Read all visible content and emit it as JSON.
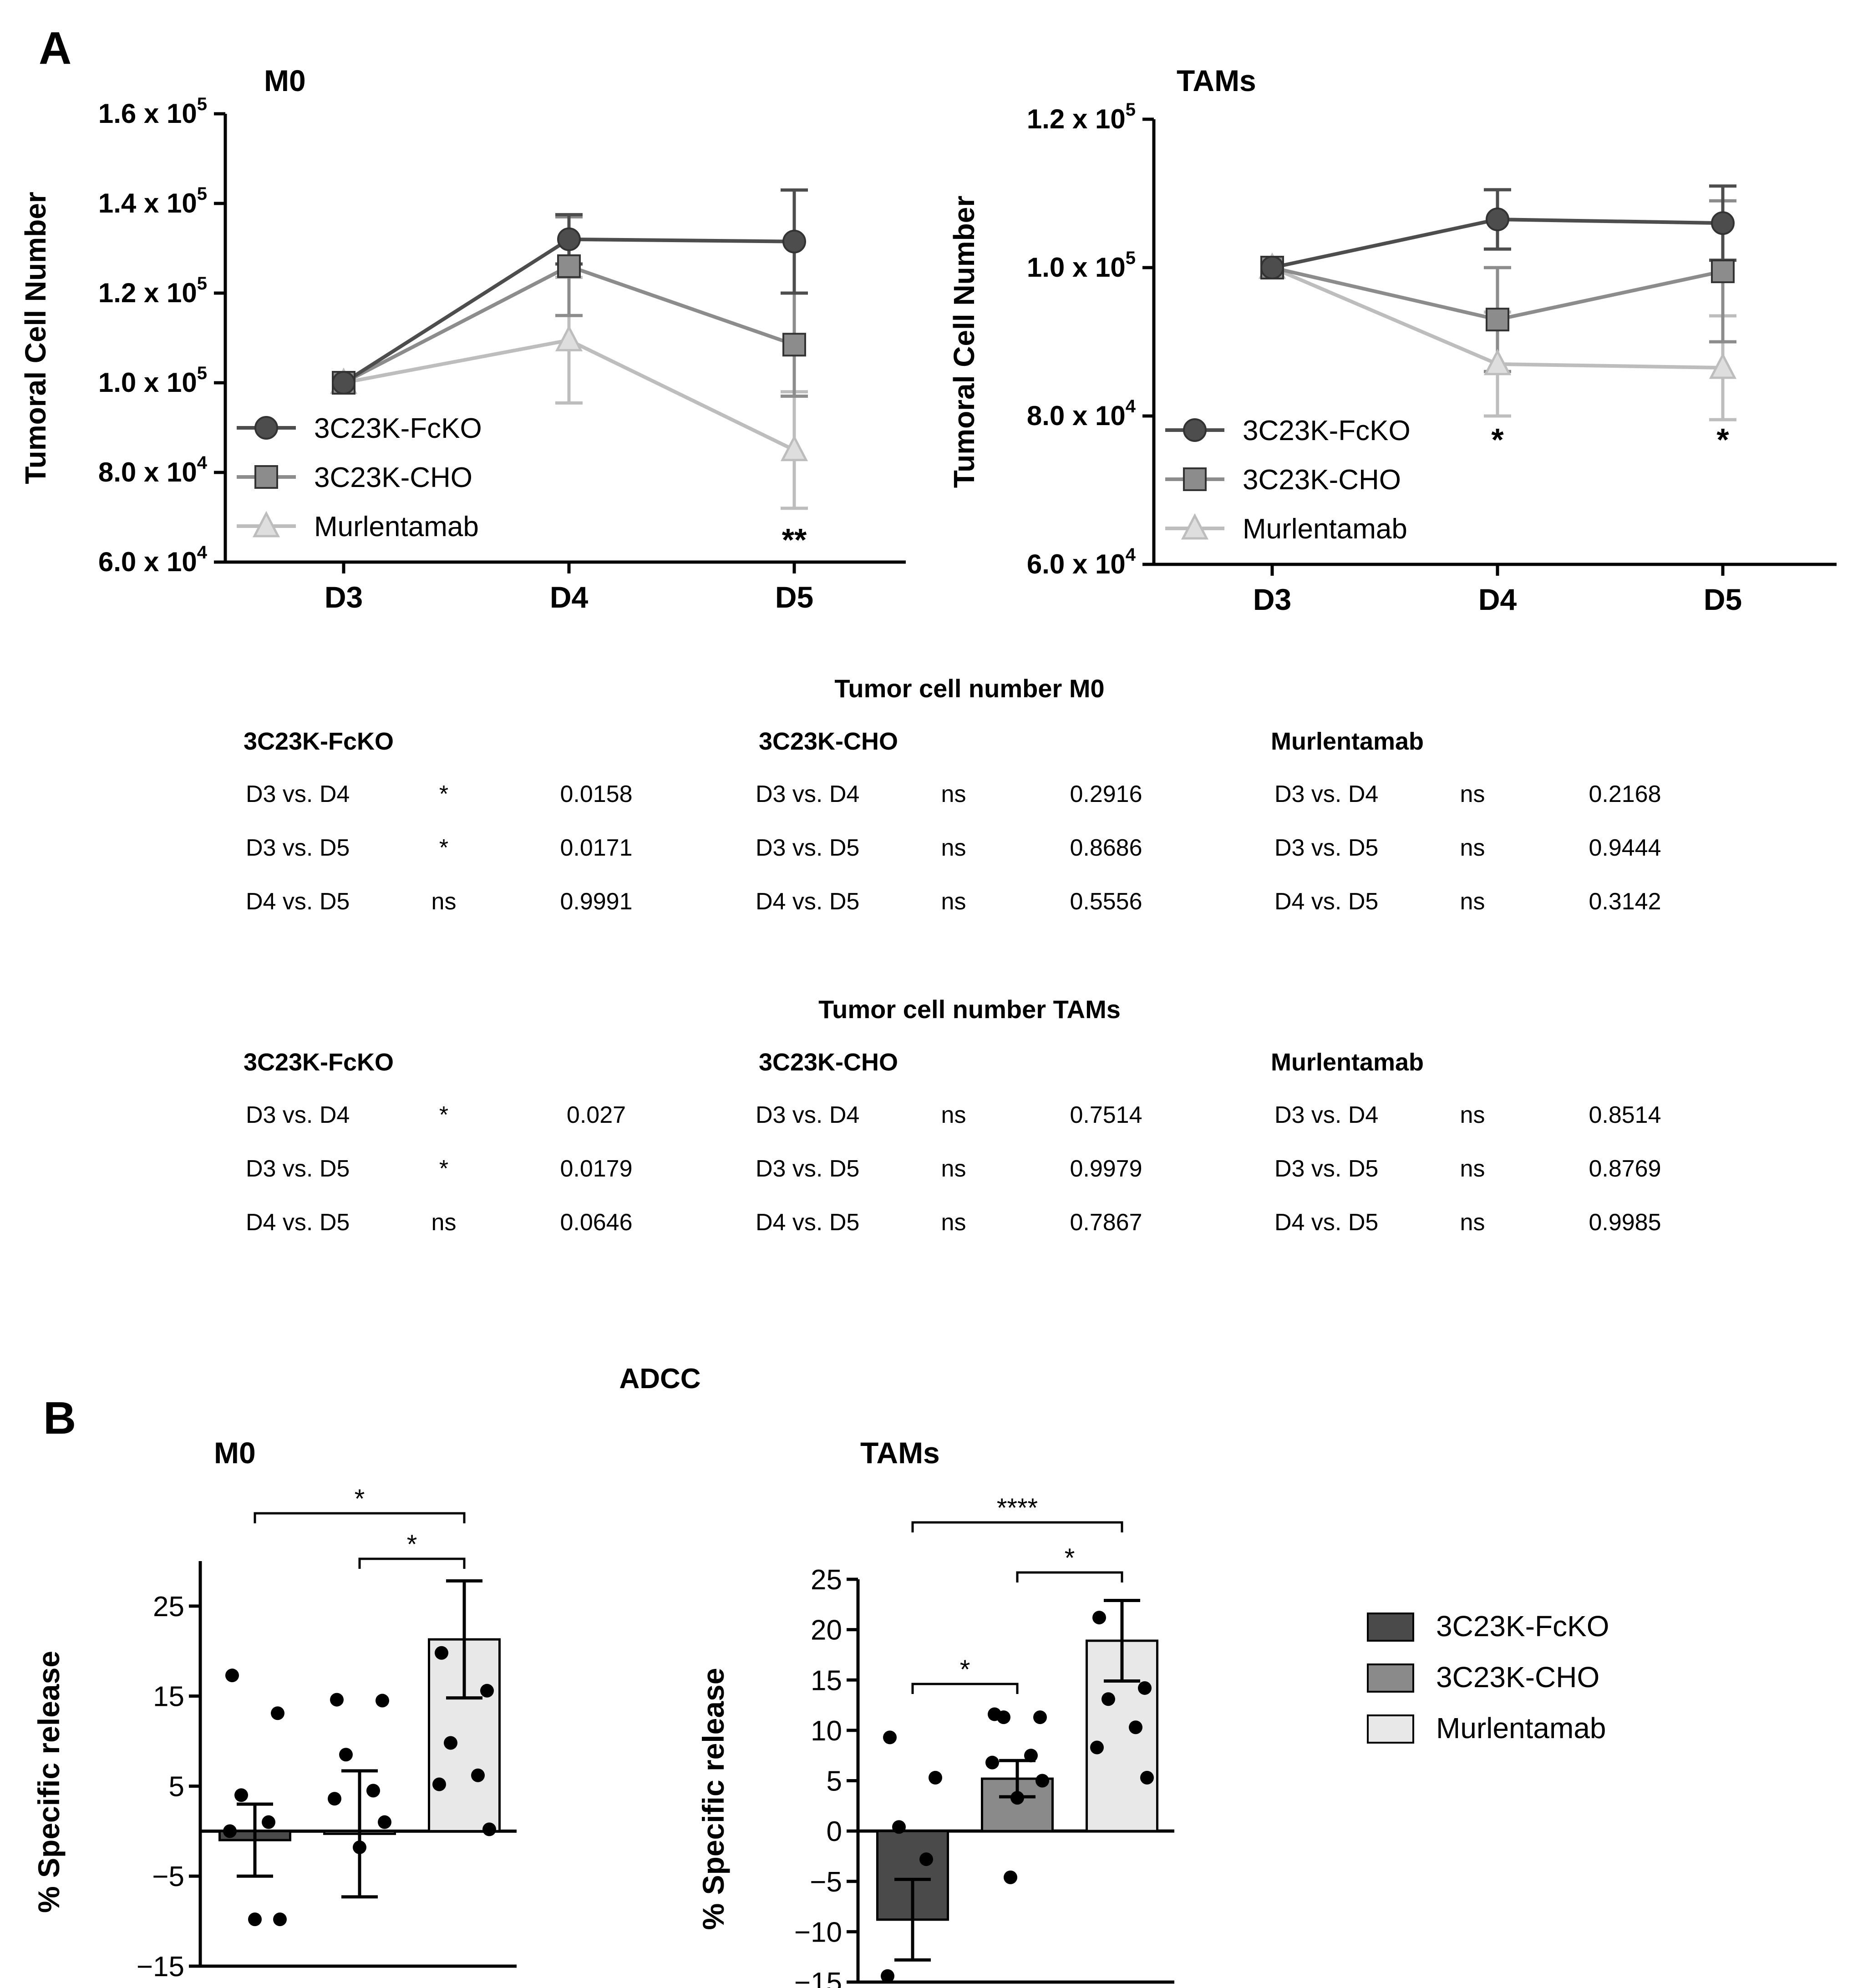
{
  "panels": {
    "a": "A",
    "b": "B"
  },
  "line_legend": [
    "3C23K-FcKO",
    "3C23K-CHO",
    "Murlentamab"
  ],
  "colors": {
    "fcko": "#4d4d4d",
    "cho": "#8c8c8c",
    "murl": "#bdbdbd",
    "bar_fcko": "#4a4a4a",
    "bar_cho": "#8a8a8a",
    "bar_murl": "#e8e8e8"
  },
  "chart_data": [
    {
      "type": "line",
      "title": "M0",
      "ylabel": "Tumoral Cell Number",
      "x": [
        "D3",
        "D4",
        "D5"
      ],
      "ylim": [
        60000,
        160000
      ],
      "yticks": [
        {
          "v": 160000,
          "m": "1.6",
          "e": "5"
        },
        {
          "v": 140000,
          "m": "1.4",
          "e": "5"
        },
        {
          "v": 120000,
          "m": "1.2",
          "e": "5"
        },
        {
          "v": 100000,
          "m": "1.0",
          "e": "5"
        },
        {
          "v": 80000,
          "m": "8.0",
          "e": "4"
        },
        {
          "v": 60000,
          "m": "6.0",
          "e": "4"
        }
      ],
      "series": [
        {
          "name": "3C23K-FcKO",
          "values": [
            100000,
            132000,
            131500
          ],
          "err": [
            0,
            5500,
            11500
          ]
        },
        {
          "name": "3C23K-CHO",
          "values": [
            100000,
            126000,
            108500
          ],
          "err": [
            0,
            11000,
            11500
          ]
        },
        {
          "name": "Murlentamab",
          "values": [
            100000,
            109500,
            85000
          ],
          "err": [
            0,
            14000,
            13000
          ]
        }
      ],
      "annotations": [
        {
          "x": "D5",
          "text": "**"
        }
      ]
    },
    {
      "type": "line",
      "title": "TAMs",
      "ylabel": "Tumoral Cell Number",
      "x": [
        "D3",
        "D4",
        "D5"
      ],
      "ylim": [
        60000,
        120000
      ],
      "yticks": [
        {
          "v": 120000,
          "m": "1.2",
          "e": "5"
        },
        {
          "v": 100000,
          "m": "1.0",
          "e": "5"
        },
        {
          "v": 80000,
          "m": "8.0",
          "e": "4"
        },
        {
          "v": 60000,
          "m": "6.0",
          "e": "4"
        }
      ],
      "series": [
        {
          "name": "3C23K-FcKO",
          "values": [
            100000,
            106500,
            106000
          ],
          "err": [
            0,
            4000,
            5000
          ]
        },
        {
          "name": "3C23K-CHO",
          "values": [
            100000,
            93000,
            99500
          ],
          "err": [
            0,
            7000,
            9500
          ]
        },
        {
          "name": "Murlentamab",
          "values": [
            100000,
            87000,
            86500
          ],
          "err": [
            0,
            7000,
            7000
          ]
        }
      ],
      "annotations": [
        {
          "x": "D4",
          "text": "*"
        },
        {
          "x": "D5",
          "text": "*"
        }
      ]
    },
    {
      "type": "bar",
      "title": "M0",
      "ylabel": "% Specific release",
      "categories": [
        "3C23K-FcKO",
        "3C23K-CHO",
        "Murlentamab"
      ],
      "ylim": [
        -15,
        30
      ],
      "yticks": [
        25,
        15,
        5,
        -5,
        -15
      ],
      "values": [
        -1,
        -0.3,
        21.3
      ],
      "err": [
        4,
        7,
        6.5
      ],
      "points": [
        [
          17.3,
          13.1,
          4,
          1,
          0,
          -9.8,
          -9.8
        ],
        [
          14.6,
          14.5,
          8.5,
          4.5,
          3.6,
          1,
          -1.8
        ],
        [
          19.8,
          15.6,
          9.8,
          6.2,
          5.2,
          0.2
        ]
      ],
      "sig": [
        {
          "from": 0,
          "to": 2,
          "text": "*"
        },
        {
          "from": 1,
          "to": 2,
          "text": "*"
        }
      ]
    },
    {
      "type": "bar",
      "title": "TAMs",
      "ylabel": "% Specific release",
      "categories": [
        "3C23K-FcKO",
        "3C23K-CHO",
        "Murlentamab"
      ],
      "ylim": [
        -15,
        25
      ],
      "yticks": [
        25,
        20,
        15,
        10,
        5,
        0,
        -5,
        -10,
        -15
      ],
      "values": [
        -8.8,
        5.2,
        18.9
      ],
      "err": [
        4,
        1.8,
        4
      ],
      "points": [
        [
          9.3,
          5.3,
          0.4,
          -2.8,
          -14.4
        ],
        [
          11.6,
          11.3,
          11.3,
          7.5,
          6.8,
          5,
          3.3,
          -4.6
        ],
        [
          21.2,
          14.2,
          13.1,
          10.3,
          8.3,
          5.3
        ]
      ],
      "sig": [
        {
          "from": 0,
          "to": 2,
          "text": "****"
        },
        {
          "from": 1,
          "to": 2,
          "text": "*"
        },
        {
          "from": 0,
          "to": 1,
          "text": "*"
        }
      ]
    }
  ],
  "bar_section_title": "ADCC",
  "bar_legend": [
    "3C23K-FcKO",
    "3C23K-CHO",
    "Murlentamab"
  ],
  "tables": [
    {
      "title": "Tumor cell number M0",
      "groups": [
        {
          "name": "3C23K-FcKO",
          "rows": [
            [
              "D3 vs. D4",
              "*",
              "0.0158"
            ],
            [
              "D3 vs. D5",
              "*",
              "0.0171"
            ],
            [
              "D4 vs. D5",
              "ns",
              "0.9991"
            ]
          ]
        },
        {
          "name": "3C23K-CHO",
          "rows": [
            [
              "D3 vs. D4",
              "ns",
              "0.2916"
            ],
            [
              "D3 vs. D5",
              "ns",
              "0.8686"
            ],
            [
              "D4 vs. D5",
              "ns",
              "0.5556"
            ]
          ]
        },
        {
          "name": "Murlentamab",
          "rows": [
            [
              "D3 vs. D4",
              "ns",
              "0.2168"
            ],
            [
              "D3 vs. D5",
              "ns",
              "0.9444"
            ],
            [
              "D4 vs. D5",
              "ns",
              "0.3142"
            ]
          ]
        }
      ]
    },
    {
      "title": "Tumor cell number TAMs",
      "groups": [
        {
          "name": "3C23K-FcKO",
          "rows": [
            [
              "D3 vs. D4",
              "*",
              "0.027"
            ],
            [
              "D3 vs. D5",
              "*",
              "0.0179"
            ],
            [
              "D4 vs. D5",
              "ns",
              "0.0646"
            ]
          ]
        },
        {
          "name": "3C23K-CHO",
          "rows": [
            [
              "D3 vs. D4",
              "ns",
              "0.7514"
            ],
            [
              "D3 vs. D5",
              "ns",
              "0.9979"
            ],
            [
              "D4 vs. D5",
              "ns",
              "0.7867"
            ]
          ]
        },
        {
          "name": "Murlentamab",
          "rows": [
            [
              "D3 vs. D4",
              "ns",
              "0.8514"
            ],
            [
              "D3 vs. D5",
              "ns",
              "0.8769"
            ],
            [
              "D4 vs. D5",
              "ns",
              "0.9985"
            ]
          ]
        }
      ]
    }
  ]
}
